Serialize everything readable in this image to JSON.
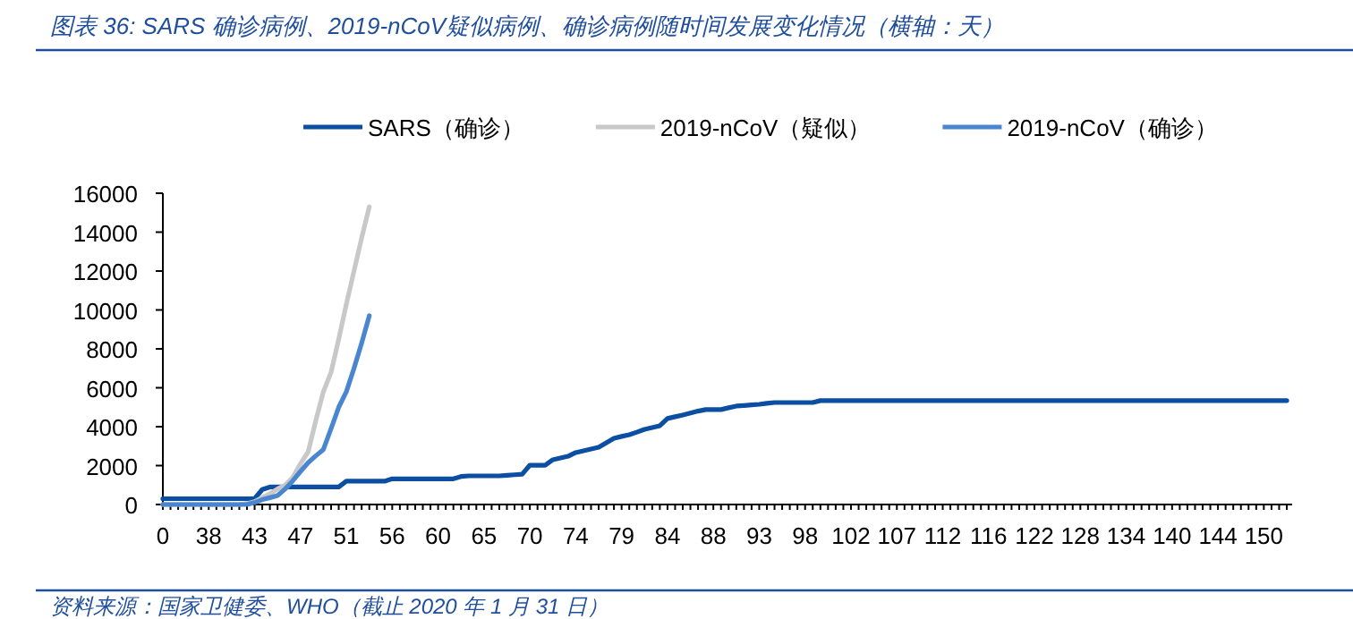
{
  "chart_data": {
    "type": "line",
    "title": "图表 36:  SARS 确诊病例、2019-nCoV疑似病例、确诊病例随时间发展变化情况（横轴：天）",
    "annotations": [
      "资料来源：国家卫健委、WHO（截止 2020 年 1 月 31 日）"
    ],
    "legend": "top",
    "ylim": [
      0,
      16000
    ],
    "yticks": [
      0,
      2000,
      4000,
      6000,
      8000,
      10000,
      12000,
      14000,
      16000
    ],
    "categories": [
      "0",
      null,
      null,
      null,
      null,
      null,
      "38",
      null,
      null,
      null,
      null,
      null,
      "43",
      null,
      null,
      null,
      null,
      null,
      "47",
      null,
      null,
      null,
      null,
      null,
      "51",
      null,
      null,
      null,
      null,
      null,
      "56",
      null,
      null,
      null,
      null,
      null,
      "60",
      null,
      null,
      null,
      null,
      null,
      "65",
      null,
      null,
      null,
      null,
      null,
      "70",
      null,
      null,
      null,
      null,
      null,
      "74",
      null,
      null,
      null,
      null,
      null,
      "79",
      null,
      null,
      null,
      null,
      null,
      "84",
      null,
      null,
      null,
      null,
      null,
      "88",
      null,
      null,
      null,
      null,
      null,
      "93",
      null,
      null,
      null,
      null,
      null,
      "98",
      null,
      null,
      null,
      null,
      null,
      "102",
      null,
      null,
      null,
      null,
      null,
      "107",
      null,
      null,
      null,
      null,
      null,
      "112",
      null,
      null,
      null,
      null,
      null,
      "116",
      null,
      null,
      null,
      null,
      null,
      "122",
      null,
      null,
      null,
      null,
      null,
      "128",
      null,
      null,
      null,
      null,
      null,
      "134",
      null,
      null,
      null,
      null,
      null,
      "140",
      null,
      null,
      null,
      null,
      null,
      "144",
      null,
      null,
      null,
      null,
      null,
      "150",
      null,
      null,
      null
    ],
    "series": [
      {
        "name": "SARS（确诊）",
        "color": "#0b4ea2",
        "values": [
          300,
          300,
          300,
          300,
          300,
          300,
          300,
          300,
          300,
          300,
          300,
          300,
          300,
          770,
          900,
          900,
          900,
          900,
          900,
          900,
          900,
          900,
          900,
          900,
          1200,
          1200,
          1200,
          1200,
          1200,
          1200,
          1320,
          1320,
          1320,
          1320,
          1320,
          1320,
          1320,
          1320,
          1320,
          1440,
          1470,
          1470,
          1470,
          1470,
          1470,
          1500,
          1530,
          1560,
          2020,
          2020,
          2020,
          2300,
          2390,
          2480,
          2670,
          2760,
          2850,
          2940,
          3170,
          3400,
          3500,
          3590,
          3720,
          3860,
          3950,
          4050,
          4420,
          4510,
          4600,
          4700,
          4800,
          4880,
          4880,
          4880,
          4970,
          5060,
          5090,
          5120,
          5150,
          5200,
          5240,
          5240,
          5240,
          5240,
          5240,
          5240,
          5340,
          5340,
          5340,
          5340,
          5340,
          5340,
          5340,
          5340,
          5340,
          5340,
          5340,
          5340,
          5340,
          5340,
          5340,
          5340,
          5340,
          5340,
          5340,
          5340,
          5340,
          5340,
          5340,
          5340,
          5340,
          5340,
          5340,
          5340,
          5340,
          5340,
          5340,
          5340,
          5340,
          5340,
          5340,
          5340,
          5340,
          5340,
          5340,
          5340,
          5340,
          5340,
          5340,
          5340,
          5340,
          5340,
          5340,
          5340,
          5340,
          5340,
          5340,
          5340,
          5340,
          5340,
          5340,
          5340,
          5340,
          5340,
          5340,
          5340,
          5340,
          5340
        ]
      },
      {
        "name": "2019-nCoV（疑似）",
        "color": "#c8c8c8",
        "values": [
          0,
          0,
          0,
          0,
          0,
          0,
          0,
          0,
          0,
          0,
          0,
          50,
          150,
          350,
          550,
          800,
          1000,
          1400,
          2100,
          2700,
          4300,
          5800,
          6800,
          8500,
          10300,
          12000,
          13700,
          15300,
          null,
          null,
          null,
          null,
          null,
          null,
          null,
          null,
          null,
          null,
          null,
          null,
          null,
          null,
          null,
          null,
          null,
          null,
          null,
          null,
          null,
          null,
          null,
          null,
          null,
          null,
          null,
          null,
          null,
          null,
          null,
          null,
          null,
          null,
          null,
          null,
          null,
          null,
          null,
          null,
          null,
          null,
          null,
          null,
          null,
          null,
          null,
          null,
          null,
          null,
          null,
          null,
          null,
          null,
          null,
          null,
          null,
          null,
          null,
          null,
          null,
          null,
          null,
          null,
          null,
          null,
          null,
          null,
          null,
          null,
          null,
          null,
          null,
          null,
          null,
          null,
          null,
          null,
          null,
          null,
          null,
          null,
          null,
          null,
          null,
          null,
          null,
          null,
          null,
          null,
          null,
          null,
          null,
          null,
          null,
          null,
          null,
          null,
          null,
          null,
          null,
          null,
          null,
          null,
          null,
          null,
          null,
          null,
          null,
          null,
          null,
          null,
          null,
          null,
          null,
          null,
          null,
          null,
          null,
          null
        ]
      },
      {
        "name": "2019-nCoV（确诊）",
        "color": "#4a86d0",
        "values": [
          0,
          0,
          0,
          0,
          0,
          0,
          0,
          0,
          0,
          0,
          0,
          0,
          100,
          250,
          350,
          460,
          800,
          1220,
          1700,
          2150,
          2500,
          2830,
          3900,
          5000,
          5800,
          7000,
          8300,
          9700,
          null,
          null,
          null,
          null,
          null,
          null,
          null,
          null,
          null,
          null,
          null,
          null,
          null,
          null,
          null,
          null,
          null,
          null,
          null,
          null,
          null,
          null,
          null,
          null,
          null,
          null,
          null,
          null,
          null,
          null,
          null,
          null,
          null,
          null,
          null,
          null,
          null,
          null,
          null,
          null,
          null,
          null,
          null,
          null,
          null,
          null,
          null,
          null,
          null,
          null,
          null,
          null,
          null,
          null,
          null,
          null,
          null,
          null,
          null,
          null,
          null,
          null,
          null,
          null,
          null,
          null,
          null,
          null,
          null,
          null,
          null,
          null,
          null,
          null,
          null,
          null,
          null,
          null,
          null,
          null,
          null,
          null,
          null,
          null,
          null,
          null,
          null,
          null,
          null,
          null,
          null,
          null,
          null,
          null,
          null,
          null,
          null,
          null,
          null,
          null,
          null,
          null,
          null,
          null,
          null,
          null,
          null,
          null,
          null,
          null,
          null,
          null,
          null,
          null,
          null,
          null,
          null,
          null,
          null,
          null
        ]
      }
    ]
  }
}
